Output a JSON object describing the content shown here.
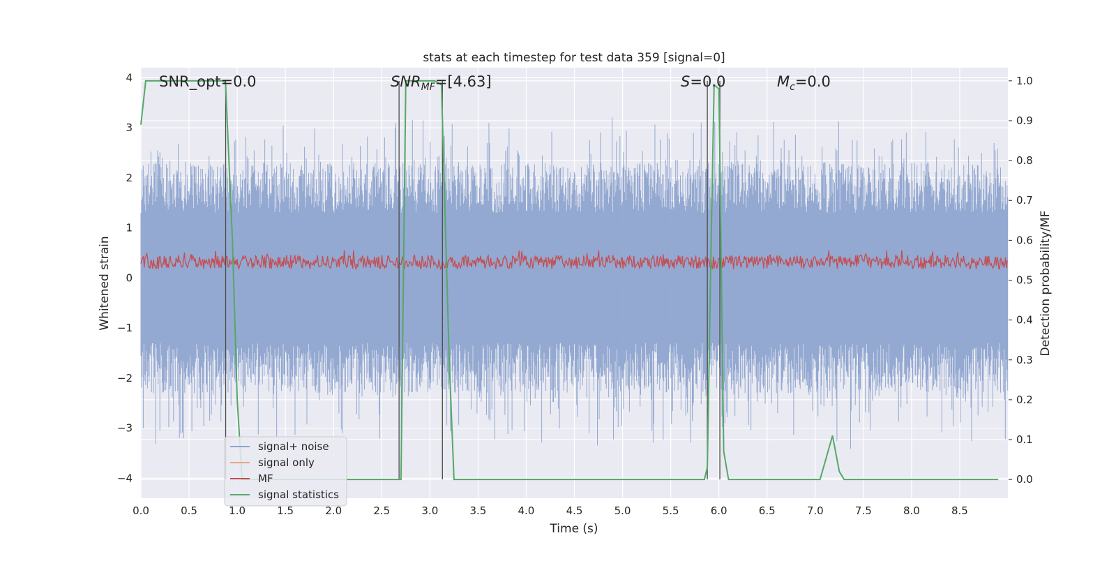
{
  "chart_data": {
    "type": "line",
    "title": "stats at each timestep for test data 359 [signal=0]",
    "xlabel": "Time (s)",
    "ylabel_left": "Whitened strain",
    "ylabel_right": "Detection probability/MF",
    "xlim": [
      0.0,
      9.0
    ],
    "ylim_left": [
      -4.4,
      4.2
    ],
    "ylim_right": [
      -0.047,
      1.033
    ],
    "x_ticks": [
      "0.0",
      "0.5",
      "1.0",
      "1.5",
      "2.0",
      "2.5",
      "3.0",
      "3.5",
      "4.0",
      "4.5",
      "5.0",
      "5.5",
      "6.0",
      "6.5",
      "7.0",
      "7.5",
      "8.0",
      "8.5"
    ],
    "y_left_ticks": [
      "−4",
      "−3",
      "−2",
      "−1",
      "0",
      "1",
      "2",
      "3",
      "4"
    ],
    "y_right_ticks": [
      "0.0",
      "0.1",
      "0.2",
      "0.3",
      "0.4",
      "0.5",
      "0.6",
      "0.7",
      "0.8",
      "0.9",
      "1.0"
    ],
    "grid": true,
    "legend_position": "lower-left",
    "annotations": {
      "snr_opt": "SNR_opt=0.0",
      "snr_mf_main": "SNR",
      "snr_mf_sub": "MF",
      "snr_mf_value": "=[4.63]",
      "s_main": "S",
      "s_value": "=0.0",
      "mc_main": "M",
      "mc_sub": "c",
      "mc_value": "=0.0"
    },
    "vertical_lines_x": [
      0.88,
      2.68,
      3.13,
      5.88,
      6.01
    ],
    "series": [
      {
        "name": "signal+ noise",
        "color": "#8fa5cf",
        "axis": "left",
        "amplitude_range": [
          -3.6,
          3.4
        ]
      },
      {
        "name": "signal only",
        "color": "#e8a585",
        "axis": "left",
        "values": "flat at 0"
      },
      {
        "name": "MF",
        "color": "#c44e52",
        "axis": "right",
        "range": [
          0.52,
          0.57
        ]
      },
      {
        "name": "signal statistics",
        "color": "#55a868",
        "axis": "right",
        "x": [
          0.0,
          0.05,
          0.1,
          0.2,
          0.3,
          0.4,
          0.5,
          0.6,
          0.7,
          0.8,
          0.86,
          0.88,
          0.95,
          1.0,
          1.05,
          1.1,
          1.2,
          2.0,
          2.6,
          2.68,
          2.7,
          2.75,
          2.8,
          2.9,
          3.0,
          3.05,
          3.12,
          3.2,
          3.25,
          3.3,
          4.0,
          5.0,
          5.8,
          5.85,
          5.88,
          5.92,
          5.95,
          6.0,
          6.05,
          6.1,
          6.2,
          7.0,
          7.05,
          7.18,
          7.25,
          7.3,
          8.0,
          8.9
        ],
        "values": [
          0.89,
          1.0,
          1.0,
          1.0,
          1.0,
          1.0,
          1.0,
          1.0,
          1.0,
          1.0,
          1.0,
          0.99,
          0.6,
          0.2,
          0.0,
          0.0,
          0.0,
          0.0,
          0.0,
          0.0,
          0.0,
          1.0,
          1.0,
          1.0,
          1.0,
          1.0,
          0.99,
          0.3,
          0.0,
          0.0,
          0.0,
          0.0,
          0.0,
          0.0,
          0.03,
          0.6,
          0.99,
          0.98,
          0.07,
          0.0,
          0.0,
          0.0,
          0.0,
          0.11,
          0.02,
          0.0,
          0.0,
          0.0
        ]
      }
    ]
  }
}
